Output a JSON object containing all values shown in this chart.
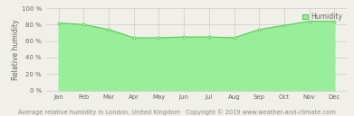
{
  "months": [
    "Jan",
    "Feb",
    "Mar",
    "Apr",
    "May",
    "Jun",
    "Jul",
    "Aug",
    "Sep",
    "Oct",
    "Nov",
    "Dec"
  ],
  "humidity": [
    82,
    80,
    74,
    64,
    64,
    65,
    65,
    64,
    74,
    79,
    84,
    84
  ],
  "line_color": "#55cc55",
  "fill_color": "#99ee99",
  "marker_color": "#ffffff",
  "marker_edge_color": "#55cc55",
  "bg_color": "#f0f0e8",
  "plot_bg_color": "#f0f0e8",
  "grid_color": "#cccccc",
  "ylabel": "Relative humidity",
  "xlabel_left": "Average relative humidity in London, United Kingdom",
  "xlabel_right": "Copyright © 2019 www.weather-and-climate.com",
  "legend_label": "Humidity",
  "ylim": [
    0,
    100
  ],
  "yticks": [
    0,
    20,
    40,
    60,
    80,
    100
  ],
  "ytick_labels": [
    "0 %",
    "20 %",
    "40 %",
    "60 %",
    "80 %",
    "100 %"
  ],
  "tick_fontsize": 5.0,
  "ylabel_fontsize": 5.5,
  "xlabel_fontsize": 4.8,
  "legend_fontsize": 5.5
}
